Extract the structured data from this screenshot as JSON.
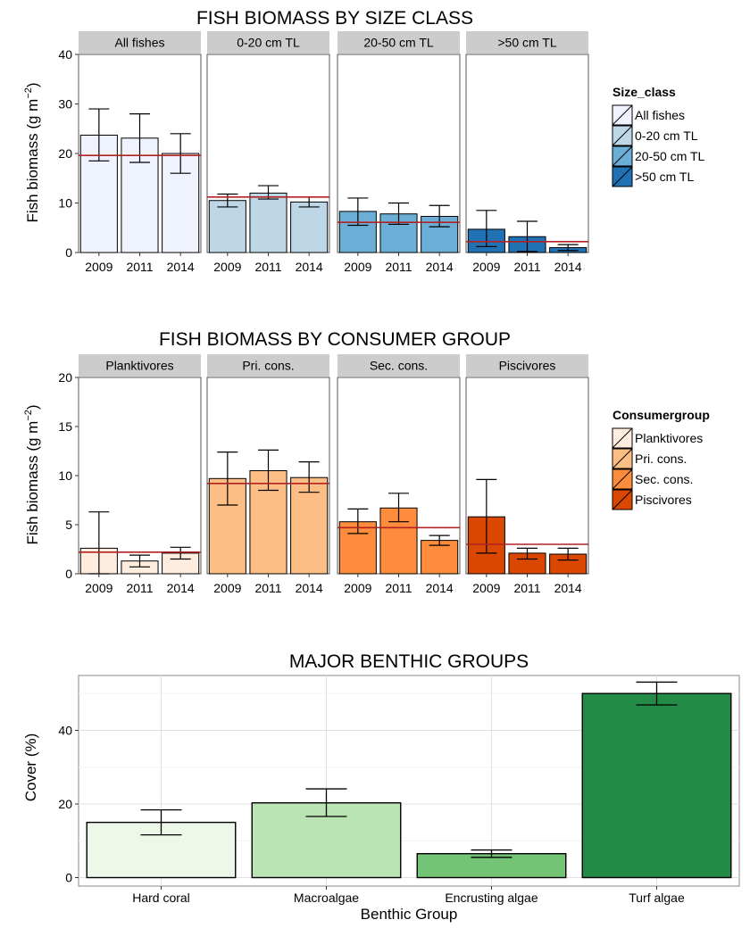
{
  "chart_data": [
    {
      "type": "bar",
      "title": "FISH BIOMASS BY SIZE CLASS",
      "ylabel": "Fish biomass (g m",
      "ylabel_sup": "−2",
      "ylabel_close": ")",
      "ylim": [
        0,
        40
      ],
      "yticks": [
        0,
        10,
        20,
        30,
        40
      ],
      "categories": [
        "2009",
        "2011",
        "2014"
      ],
      "legend": {
        "title": "Size_class",
        "position": "right"
      },
      "panels": [
        {
          "name": "All fishes",
          "color": "#eff3ff",
          "values": [
            23.7,
            23.1,
            20.0
          ],
          "err_low": [
            18.5,
            18.2,
            16.0
          ],
          "err_high": [
            29.0,
            28.0,
            24.0
          ],
          "mean": 19.6
        },
        {
          "name": "0-20 cm TL",
          "color": "#bdd7e7",
          "values": [
            10.5,
            12.0,
            10.2
          ],
          "err_low": [
            9.2,
            10.8,
            9.2
          ],
          "err_high": [
            11.8,
            13.5,
            11.2
          ],
          "mean": 11.2
        },
        {
          "name": "20-50 cm TL",
          "color": "#6baed6",
          "values": [
            8.3,
            7.8,
            7.3
          ],
          "err_low": [
            5.5,
            5.7,
            5.2
          ],
          "err_high": [
            11.0,
            10.0,
            9.5
          ],
          "mean": 6.1
        },
        {
          "name": ">50 cm TL",
          "color": "#2171b5",
          "values": [
            4.7,
            3.2,
            1.0
          ],
          "err_low": [
            1.2,
            0.2,
            0.4
          ],
          "err_high": [
            8.5,
            6.3,
            1.6
          ],
          "mean": 2.2
        }
      ]
    },
    {
      "type": "bar",
      "title": "FISH BIOMASS BY CONSUMER GROUP",
      "ylabel": "Fish biomass (g m",
      "ylabel_sup": "−2",
      "ylabel_close": ")",
      "ylim": [
        0,
        20
      ],
      "yticks": [
        0,
        5,
        10,
        15,
        20
      ],
      "categories": [
        "2009",
        "2011",
        "2014"
      ],
      "legend": {
        "title": "Consumergroup",
        "position": "right"
      },
      "panels": [
        {
          "name": "Planktivores",
          "color": "#feedde",
          "values": [
            2.6,
            1.3,
            2.1
          ],
          "err_low": [
            0.0,
            0.7,
            1.5
          ],
          "err_high": [
            6.3,
            1.9,
            2.7
          ],
          "mean": 2.2
        },
        {
          "name": "Pri. cons.",
          "color": "#fdbe85",
          "values": [
            9.7,
            10.5,
            9.8
          ],
          "err_low": [
            7.0,
            8.5,
            8.3
          ],
          "err_high": [
            12.4,
            12.6,
            11.4
          ],
          "mean": 9.2
        },
        {
          "name": "Sec. cons.",
          "color": "#fd8d3c",
          "values": [
            5.3,
            6.7,
            3.4
          ],
          "err_low": [
            4.1,
            5.3,
            2.9
          ],
          "err_high": [
            6.6,
            8.2,
            3.9
          ],
          "mean": 4.7
        },
        {
          "name": "Piscivores",
          "color": "#d94701",
          "values": [
            5.8,
            2.1,
            2.0
          ],
          "err_low": [
            2.1,
            1.5,
            1.4
          ],
          "err_high": [
            9.6,
            2.6,
            2.6
          ],
          "mean": 3.0
        }
      ]
    },
    {
      "type": "bar",
      "title": "MAJOR BENTHIC GROUPS",
      "xlabel": "Benthic Group",
      "ylabel": "Cover (%)",
      "ylim": [
        -2.3,
        54.9
      ],
      "yticks": [
        0,
        20,
        40
      ],
      "grid": true,
      "categories": [
        "Hard coral",
        "Macroalgae",
        "Encrusting algae",
        "Turf algae"
      ],
      "colors": [
        "#edf8e9",
        "#bae4b3",
        "#74c476",
        "#238b45"
      ],
      "values": [
        15.0,
        20.3,
        6.5,
        50.0
      ],
      "err_low": [
        11.6,
        16.6,
        5.5,
        46.9
      ],
      "err_high": [
        18.4,
        24.1,
        7.5,
        53.1
      ]
    }
  ]
}
